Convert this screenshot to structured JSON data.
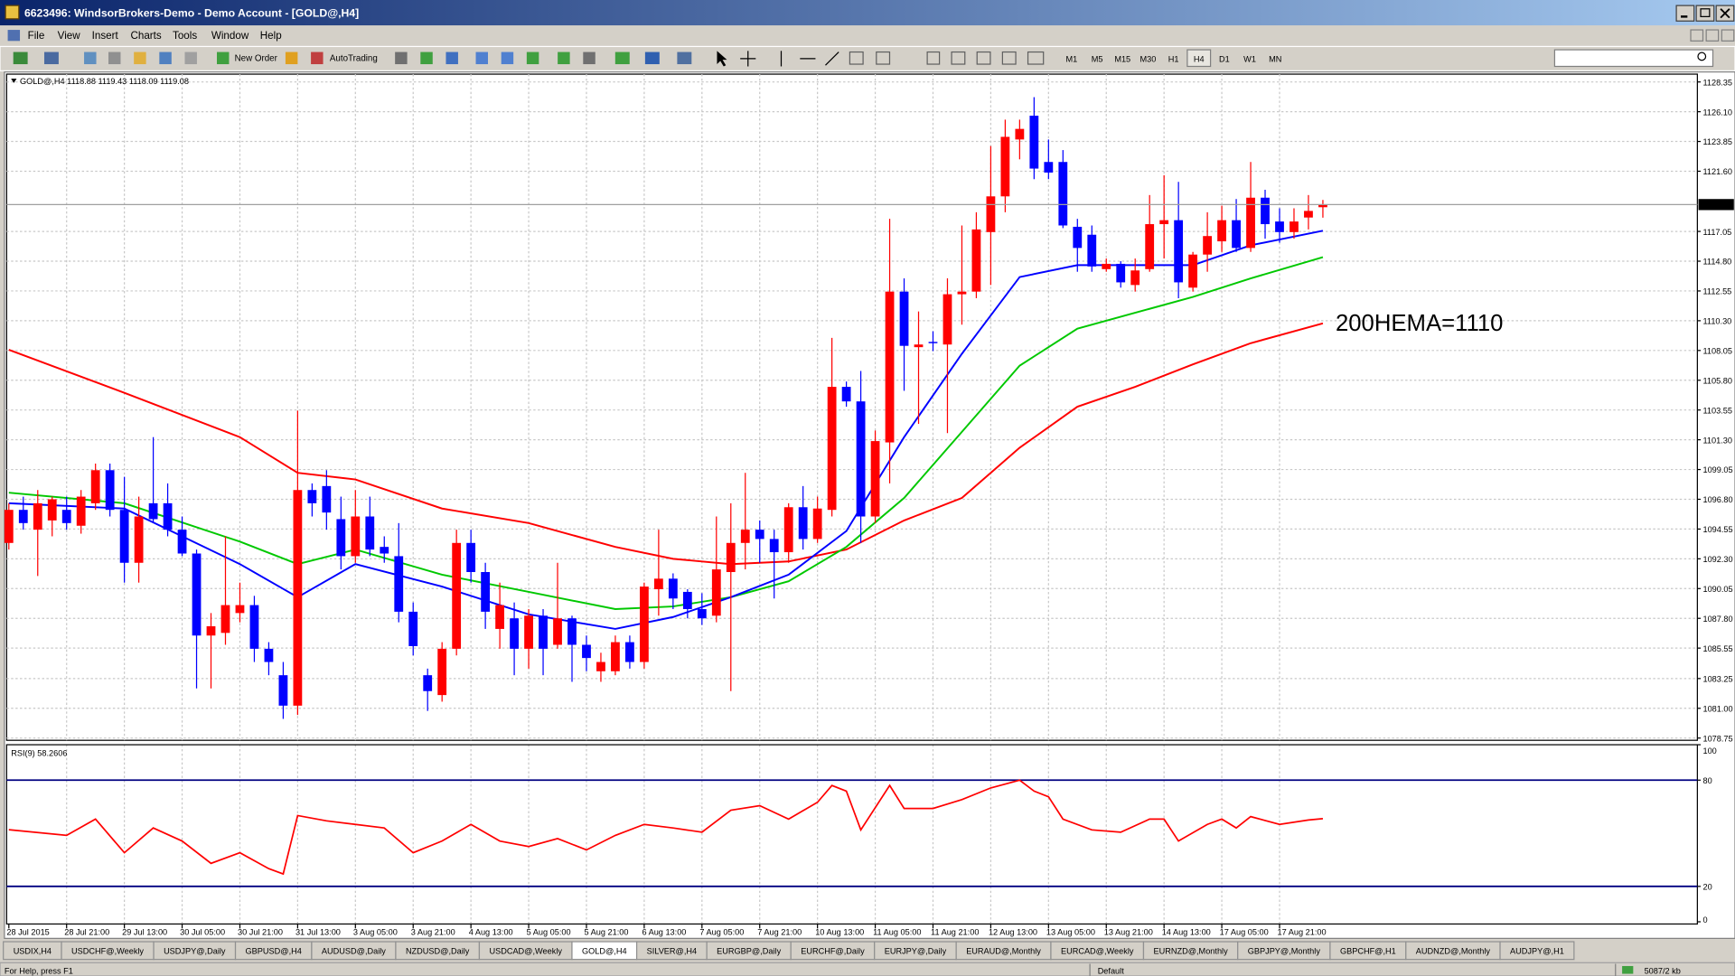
{
  "window": {
    "title": "6623496: WindsorBrokers-Demo - Demo Account - [GOLD@,H4]"
  },
  "menu": [
    "File",
    "View",
    "Insert",
    "Charts",
    "Tools",
    "Window",
    "Help"
  ],
  "toolbar": {
    "new_order": "New Order",
    "autotrading": "AutoTrading",
    "timeframes": [
      "M1",
      "M5",
      "M15",
      "M30",
      "H1",
      "H4",
      "D1",
      "W1",
      "MN"
    ]
  },
  "chart_data": [
    {
      "type": "candlestick",
      "label": "GOLD@,H4 1118.88 1119.43 1118.09 1119.08",
      "annotation": "200HEMA=1110",
      "up_color": "#ff0000",
      "down_color": "#0000ff",
      "grid": true,
      "categories": [
        "28 Jul 2015",
        null,
        null,
        null,
        "28 Jul 21:00",
        null,
        null,
        null,
        "29 Jul 13:00",
        null,
        null,
        null,
        "30 Jul 05:00",
        null,
        null,
        null,
        "30 Jul 21:00",
        null,
        null,
        null,
        "31 Jul 13:00",
        null,
        null,
        null,
        "3 Aug 05:00",
        null,
        null,
        null,
        "3 Aug 21:00",
        null,
        null,
        null,
        "4 Aug 13:00",
        null,
        null,
        null,
        "5 Aug 05:00",
        null,
        null,
        null,
        "5 Aug 21:00",
        null,
        null,
        null,
        "6 Aug 13:00",
        null,
        null,
        null,
        "7 Aug 05:00",
        null,
        null,
        null,
        "7 Aug 21:00",
        null,
        null,
        null,
        "10 Aug 13:00",
        null,
        null,
        null,
        "11 Aug 05:00",
        null,
        null,
        null,
        "11 Aug 21:00",
        null,
        null,
        null,
        "12 Aug 13:00",
        null,
        null,
        null,
        "13 Aug 05:00",
        null,
        null,
        null,
        "13 Aug 21:00",
        null,
        null,
        null,
        "14 Aug 13:00",
        null,
        null,
        null,
        "17 Aug 05:00",
        null,
        null,
        null,
        "17 Aug 21:00",
        null,
        null,
        null
      ],
      "open": [
        1093.5,
        1096,
        1094.5,
        1095.2,
        1096,
        1094.8,
        1096.5,
        1099,
        1096,
        1092,
        1096.5,
        1096.5,
        1094.5,
        1092.7,
        1086.5,
        1086.7,
        1088.2,
        1088.8,
        1085.5,
        1083.5,
        1081.2,
        1097.5,
        1097.8,
        1095.3,
        1092.5,
        1095.5,
        1093.2,
        1092.5,
        1088.3,
        1083.5,
        1082,
        1085.5,
        1093.5,
        1091.3,
        1087,
        1087.8,
        1085.5,
        1088,
        1085.8,
        1087.8,
        1085.8,
        1083.8,
        1083.8,
        1086,
        1084.5,
        1090,
        1090.8,
        1089.8,
        1088.5,
        1088,
        1091.3,
        1093.5,
        1094.5,
        1093.8,
        1092.8,
        1096.2,
        1093.8,
        1096,
        1105.3,
        1104.2,
        1095.5,
        1101.1,
        1112.5,
        1108.3,
        1108.7,
        1108.5,
        1112.3,
        1112.5,
        1117,
        1119.7,
        1124,
        1125.8,
        1122.3,
        1122.3,
        1117.4,
        1116.8,
        1114.2,
        1114.6,
        1113,
        1114.2,
        1117.6,
        1117.9,
        1112.8,
        1115.3,
        1116.3,
        1117.9,
        1115.8,
        1119.6,
        1117.8,
        1117,
        1118.1,
        1118.88
      ],
      "high": [
        1096.5,
        1097,
        1097.5,
        1097,
        1097,
        1097.5,
        1099.5,
        1099.5,
        1098.5,
        1097,
        1101.5,
        1098,
        1095.5,
        1093,
        1088.2,
        1094,
        1090.5,
        1089.5,
        1086,
        1084.5,
        1103.5,
        1098,
        1099,
        1097,
        1097.5,
        1097,
        1094,
        1095,
        1089,
        1084,
        1086,
        1094.5,
        1094.5,
        1092,
        1090.5,
        1089,
        1088.5,
        1088.5,
        1092,
        1088,
        1086.5,
        1085.2,
        1086.5,
        1086.5,
        1090.5,
        1094.5,
        1091.2,
        1090,
        1089.7,
        1095.5,
        1096.5,
        1098.8,
        1095.2,
        1094.5,
        1096.5,
        1097.8,
        1097,
        1109,
        1105.7,
        1106.5,
        1102,
        1118,
        1113.5,
        1111,
        1109.5,
        1113.5,
        1117.5,
        1118.5,
        1123.5,
        1125.5,
        1125.5,
        1127.2,
        1124,
        1123.2,
        1118,
        1117.5,
        1115,
        1114.8,
        1115,
        1119.8,
        1121.3,
        1120.8,
        1115.5,
        1118.5,
        1119,
        1119.5,
        1122.3,
        1120.2,
        1118.8,
        1118.8,
        1119.8,
        1119.43
      ],
      "low": [
        1093,
        1094.5,
        1091,
        1094,
        1094.5,
        1094.2,
        1096,
        1095.5,
        1090.5,
        1090.5,
        1095,
        1094,
        1092.5,
        1082.5,
        1082.5,
        1085.8,
        1087.5,
        1084.5,
        1083.5,
        1080.2,
        1080.5,
        1095.5,
        1094.5,
        1091.5,
        1092,
        1092.5,
        1092,
        1087.5,
        1085,
        1080.8,
        1081.5,
        1085,
        1090.5,
        1087,
        1085.5,
        1083.5,
        1084,
        1083.5,
        1085.5,
        1083,
        1083.8,
        1083,
        1083.5,
        1084,
        1084,
        1088,
        1088.5,
        1087.8,
        1087.3,
        1087.5,
        1082.3,
        1091.5,
        1092,
        1089.3,
        1092,
        1093,
        1093.5,
        1095.5,
        1103.8,
        1093.5,
        1095,
        1098,
        1105,
        1102.5,
        1108,
        1101.8,
        1110,
        1112,
        1113,
        1118.5,
        1122.5,
        1121,
        1121,
        1117.3,
        1114,
        1114,
        1114,
        1112.8,
        1112.5,
        1114,
        1115,
        1112,
        1112.5,
        1114,
        1115.5,
        1115.5,
        1115.5,
        1116.5,
        1116.2,
        1116.5,
        1117.2,
        1118.09
      ],
      "close": [
        1096,
        1095,
        1096.5,
        1096.8,
        1095,
        1097,
        1099,
        1096,
        1092,
        1095.5,
        1095.3,
        1094.5,
        1092.7,
        1086.5,
        1087.2,
        1088.8,
        1088.8,
        1085.5,
        1084.5,
        1081.2,
        1097.5,
        1096.5,
        1095.8,
        1092.5,
        1095.5,
        1093,
        1092.7,
        1088.3,
        1085.7,
        1082.3,
        1085.5,
        1093.5,
        1091.3,
        1088.3,
        1088.8,
        1085.5,
        1088,
        1085.5,
        1087.8,
        1085.8,
        1084.8,
        1084.5,
        1086,
        1084.5,
        1090.2,
        1090.8,
        1089.3,
        1088.5,
        1087.8,
        1091.5,
        1093.5,
        1094.5,
        1093.8,
        1092.8,
        1096.2,
        1093.8,
        1096.1,
        1105.3,
        1104.2,
        1095.5,
        1101.2,
        1112.5,
        1108.4,
        1108.5,
        1108.6,
        1112.3,
        1112.5,
        1117.2,
        1119.7,
        1124.2,
        1124.8,
        1121.8,
        1121.5,
        1117.5,
        1115.8,
        1114.4,
        1114.6,
        1113.2,
        1114.1,
        1117.6,
        1117.9,
        1113.2,
        1115.3,
        1116.7,
        1117.9,
        1115.8,
        1119.6,
        1117.6,
        1117,
        1117.8,
        1118.6,
        1119.08
      ],
      "overlays": [
        {
          "color": "#ff0000",
          "x": [
            0,
            8,
            16,
            20,
            24,
            30,
            36,
            42,
            46,
            50,
            54,
            58,
            62,
            66,
            70,
            74,
            78,
            82,
            86,
            91
          ],
          "values": [
            1108.1,
            1104.85,
            1101.5,
            1098.8,
            1098.3,
            1096.1,
            1095.0,
            1093.2,
            1092.3,
            1091.9,
            1092.1,
            1093.0,
            1095.2,
            1096.9,
            1100.7,
            1103.8,
            1105.3,
            1107.0,
            1108.6,
            1110.1
          ]
        },
        {
          "color": "#00c800",
          "x": [
            0,
            8,
            16,
            20,
            24,
            30,
            36,
            42,
            46,
            50,
            54,
            58,
            62,
            66,
            70,
            74,
            78,
            82,
            86,
            91
          ],
          "values": [
            1097.3,
            1096.5,
            1093.6,
            1091.9,
            1093.0,
            1091.1,
            1089.8,
            1088.5,
            1088.7,
            1089.4,
            1090.6,
            1093.2,
            1096.9,
            1101.9,
            1106.9,
            1109.7,
            1110.9,
            1112.1,
            1113.5,
            1115.1
          ]
        },
        {
          "color": "#0000ff",
          "x": [
            0,
            8,
            16,
            20,
            24,
            30,
            36,
            42,
            46,
            50,
            54,
            58,
            62,
            66,
            70,
            74,
            78,
            82,
            86,
            91
          ],
          "values": [
            1096.5,
            1096.1,
            1091.9,
            1089.4,
            1091.9,
            1090.2,
            1088.1,
            1087.0,
            1087.9,
            1089.4,
            1091.1,
            1094.4,
            1101.5,
            1107.8,
            1113.6,
            1114.5,
            1114.5,
            1114.5,
            1116.0,
            1117.1
          ]
        }
      ],
      "current_price": 1119.08,
      "ylim": [
        1078.58,
        1128.94
      ],
      "yticks": [
        1128.35,
        {
          "value": 1126.1,
          "label": "1126.10"
        },
        1123.85,
        {
          "value": 1121.6,
          "label": "1121.60"
        },
        1117.05,
        {
          "value": 1114.8,
          "label": "1114.80"
        },
        1112.55,
        {
          "value": 1110.3,
          "label": "1110.30"
        },
        1108.05,
        {
          "value": 1105.8,
          "label": "1105.80"
        },
        1103.55,
        {
          "value": 1101.3,
          "label": "1101.30"
        },
        1099.05,
        {
          "value": 1096.8,
          "label": "1096.80"
        },
        1094.55,
        {
          "value": 1092.3,
          "label": "1092.30"
        },
        1090.05,
        {
          "value": 1087.8,
          "label": "1087.80"
        },
        1085.55,
        1083.25,
        {
          "value": 1081,
          "label": "1081.00"
        },
        1078.75
      ]
    },
    {
      "type": "line",
      "label": "RSI(9) 58.2606",
      "color": "#ff0000",
      "level_color": "#000080",
      "x": [
        0,
        4,
        6,
        8,
        10,
        12,
        14,
        16,
        18,
        19,
        20,
        22,
        24,
        26,
        28,
        30,
        32,
        34,
        36,
        38,
        40,
        42,
        44,
        46,
        48,
        50,
        52,
        54,
        56,
        57,
        58,
        59,
        61,
        62,
        64,
        66,
        68,
        70,
        71,
        72,
        73,
        75,
        77,
        79,
        80,
        81,
        83,
        84,
        85,
        86,
        88,
        90,
        91
      ],
      "values": [
        52,
        48.8,
        58,
        39,
        53,
        45.6,
        33,
        39,
        30,
        27,
        60,
        57,
        55,
        53,
        39,
        45.6,
        55,
        45.6,
        42.5,
        47,
        40.6,
        48.8,
        55,
        53,
        50.6,
        63,
        65.6,
        58,
        67.5,
        77,
        73.8,
        51.9,
        77,
        64,
        64,
        69,
        75.6,
        80,
        73.8,
        70.6,
        58,
        51.9,
        50.6,
        58,
        58,
        45.6,
        55,
        58,
        53,
        59.4,
        55,
        57.5,
        58.26
      ],
      "levels": [
        80,
        20
      ],
      "ylim": [
        0,
        100
      ],
      "yticks": [
        100,
        80,
        20,
        0
      ]
    }
  ],
  "tabs": [
    "USDIX,H4",
    "USDCHF@,Weekly",
    "USDJPY@,Daily",
    "GBPUSD@,H4",
    "AUDUSD@,Daily",
    "NZDUSD@,Daily",
    "USDCAD@,Weekly",
    "GOLD@,H4",
    "SILVER@,H4",
    "EURGBP@,Daily",
    "EURCHF@,Daily",
    "EURJPY@,Daily",
    "EURAUD@,Monthly",
    "EURCAD@,Weekly",
    "EURNZD@,Monthly",
    "GBPJPY@,Monthly",
    "GBPCHF@,H1",
    "AUDNZD@,Monthly",
    "AUDJPY@,H1"
  ],
  "status": {
    "help": "For Help, press F1",
    "profile": "Default",
    "traffic": "5087/2 kb"
  }
}
